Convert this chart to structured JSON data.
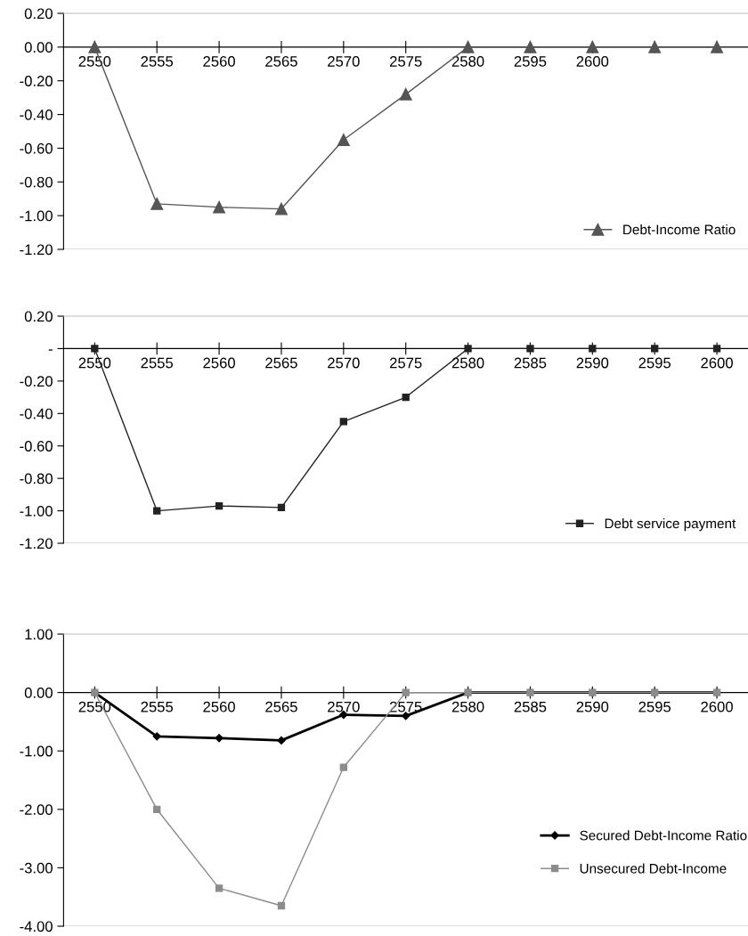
{
  "chart_data": [
    {
      "type": "line",
      "categories": [
        "2550",
        "2555",
        "2560",
        "2565",
        "2570",
        "2575",
        "2580",
        "2595",
        "2600",
        null,
        null
      ],
      "series": [
        {
          "name": "Debt-Income Ratio",
          "color": "#555555",
          "marker": "triangle",
          "values": [
            0,
            -0.93,
            -0.95,
            -0.96,
            -0.55,
            -0.28,
            0,
            0,
            0,
            0,
            0
          ]
        }
      ],
      "ylim": [
        -1.2,
        0.2
      ],
      "yticks": [
        {
          "value": 0.2,
          "label": "0.20"
        },
        {
          "value": 0,
          "label": "0.00"
        },
        {
          "value": -0.2,
          "label": "-0.20"
        },
        {
          "value": -0.4,
          "label": "-0.40"
        },
        {
          "value": -0.6,
          "label": "-0.60"
        },
        {
          "value": -0.8,
          "label": "-0.80"
        },
        {
          "value": -1.0,
          "label": "-1.00"
        },
        {
          "value": -1.2,
          "label": "-1.20"
        }
      ],
      "legend": "lower right"
    },
    {
      "type": "line",
      "categories": [
        "2550",
        "2555",
        "2560",
        "2565",
        "2570",
        "2575",
        "2580",
        "2585",
        "2590",
        "2595",
        "2600"
      ],
      "series": [
        {
          "name": "Debt service payment",
          "color": "#222222",
          "marker": "square",
          "values": [
            0,
            -1.0,
            -0.97,
            -0.98,
            -0.45,
            -0.3,
            0,
            0,
            0,
            0,
            0
          ]
        }
      ],
      "ylim": [
        -1.2,
        0.2
      ],
      "yticks": [
        {
          "value": 0.2,
          "label": "0.20"
        },
        {
          "value": 0,
          "label": "-"
        },
        {
          "value": -0.2,
          "label": "-0.20"
        },
        {
          "value": -0.4,
          "label": "-0.40"
        },
        {
          "value": -0.6,
          "label": "-0.60"
        },
        {
          "value": -0.8,
          "label": "-0.80"
        },
        {
          "value": -1.0,
          "label": "-1.00"
        },
        {
          "value": -1.2,
          "label": "-1.20"
        }
      ],
      "legend": "lower right"
    },
    {
      "type": "line",
      "categories": [
        "2550",
        "2555",
        "2560",
        "2565",
        "2570",
        "2575",
        "2580",
        "2585",
        "2590",
        "2595",
        "2600"
      ],
      "series": [
        {
          "name": "Secured Debt-Income Ratio",
          "color": "#000000",
          "marker": "diamond",
          "values": [
            0,
            -0.75,
            -0.78,
            -0.82,
            -0.38,
            -0.4,
            0,
            0,
            0,
            0,
            0
          ]
        },
        {
          "name": "Unsecured Debt-Income",
          "color": "#8c8c8c",
          "marker": "square",
          "values": [
            0,
            -2.0,
            -3.35,
            -3.65,
            -1.28,
            0,
            0,
            0,
            0,
            0,
            0
          ]
        }
      ],
      "ylim": [
        -4.0,
        1.0
      ],
      "yticks": [
        {
          "value": 1,
          "label": "1.00"
        },
        {
          "value": 0,
          "label": "0.00"
        },
        {
          "value": -1,
          "label": "-1.00"
        },
        {
          "value": -2,
          "label": "-2.00"
        },
        {
          "value": -3,
          "label": "-3.00"
        },
        {
          "value": -4,
          "label": "-4.00"
        }
      ],
      "legend": "center right"
    }
  ]
}
